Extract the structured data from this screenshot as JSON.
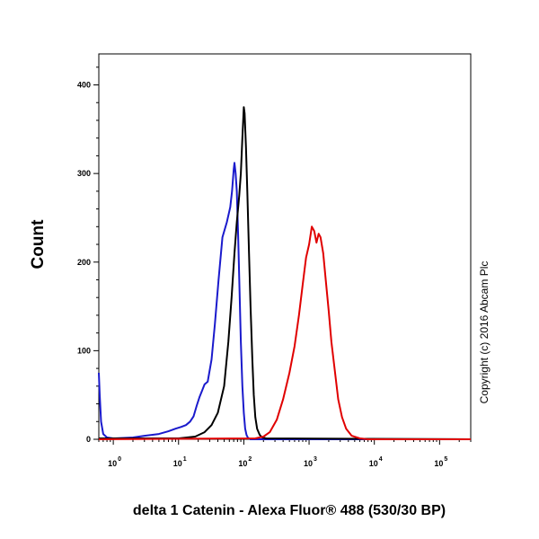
{
  "chart_data": {
    "type": "line",
    "title": "",
    "xlabel": "delta 1 Catenin - Alexa Fluor® 488 (530/30 BP)",
    "ylabel": "Count",
    "x_scale": "log",
    "xlim": [
      0.6,
      300000
    ],
    "ylim": [
      0,
      435
    ],
    "y_ticks": [
      0,
      100,
      200,
      300,
      400
    ],
    "x_ticks": [
      {
        "value": 1,
        "base": "10",
        "exp": "0"
      },
      {
        "value": 10,
        "base": "10",
        "exp": "1"
      },
      {
        "value": 100,
        "base": "10",
        "exp": "2"
      },
      {
        "value": 1000,
        "base": "10",
        "exp": "3"
      },
      {
        "value": 10000,
        "base": "10",
        "exp": "4"
      },
      {
        "value": 100000,
        "base": "10",
        "exp": "5"
      }
    ],
    "grid": false,
    "legend": "none",
    "annotation": "Copyright (c) 2016 Abcam Plc",
    "series": [
      {
        "color": "#1a1acc",
        "points": [
          [
            0.6,
            75
          ],
          [
            0.62,
            50
          ],
          [
            0.65,
            20
          ],
          [
            0.7,
            6
          ],
          [
            0.8,
            2
          ],
          [
            1,
            1
          ],
          [
            2,
            2
          ],
          [
            3,
            4
          ],
          [
            5,
            6
          ],
          [
            7,
            9
          ],
          [
            9,
            12
          ],
          [
            11,
            14
          ],
          [
            13,
            16
          ],
          [
            15,
            20
          ],
          [
            17,
            26
          ],
          [
            19,
            38
          ],
          [
            21,
            48
          ],
          [
            23,
            55
          ],
          [
            25,
            62
          ],
          [
            28,
            65
          ],
          [
            32,
            90
          ],
          [
            36,
            130
          ],
          [
            41,
            180
          ],
          [
            47,
            228
          ],
          [
            55,
            245
          ],
          [
            62,
            262
          ],
          [
            66,
            280
          ],
          [
            70,
            305
          ],
          [
            72,
            312
          ],
          [
            75,
            300
          ],
          [
            78,
            280
          ],
          [
            82,
            230
          ],
          [
            86,
            170
          ],
          [
            90,
            110
          ],
          [
            95,
            60
          ],
          [
            100,
            30
          ],
          [
            105,
            12
          ],
          [
            110,
            5
          ],
          [
            115,
            2
          ],
          [
            125,
            0
          ],
          [
            300000,
            0
          ]
        ]
      },
      {
        "color": "#000000",
        "points": [
          [
            0.6,
            1
          ],
          [
            10,
            1
          ],
          [
            18,
            3
          ],
          [
            25,
            8
          ],
          [
            32,
            16
          ],
          [
            40,
            30
          ],
          [
            50,
            60
          ],
          [
            58,
            110
          ],
          [
            65,
            160
          ],
          [
            72,
            210
          ],
          [
            78,
            245
          ],
          [
            85,
            275
          ],
          [
            90,
            300
          ],
          [
            95,
            340
          ],
          [
            100,
            375
          ],
          [
            103,
            368
          ],
          [
            108,
            330
          ],
          [
            113,
            280
          ],
          [
            120,
            210
          ],
          [
            127,
            150
          ],
          [
            135,
            90
          ],
          [
            142,
            50
          ],
          [
            150,
            25
          ],
          [
            160,
            12
          ],
          [
            175,
            5
          ],
          [
            190,
            2
          ],
          [
            220,
            1
          ],
          [
            300000,
            0
          ]
        ]
      },
      {
        "color": "#e00000",
        "points": [
          [
            0.6,
            0
          ],
          [
            150,
            1
          ],
          [
            200,
            3
          ],
          [
            250,
            8
          ],
          [
            320,
            22
          ],
          [
            400,
            45
          ],
          [
            500,
            75
          ],
          [
            600,
            105
          ],
          [
            700,
            140
          ],
          [
            800,
            175
          ],
          [
            900,
            205
          ],
          [
            1000,
            220
          ],
          [
            1100,
            240
          ],
          [
            1200,
            235
          ],
          [
            1300,
            222
          ],
          [
            1400,
            232
          ],
          [
            1500,
            228
          ],
          [
            1650,
            210
          ],
          [
            1800,
            180
          ],
          [
            2000,
            145
          ],
          [
            2200,
            110
          ],
          [
            2500,
            75
          ],
          [
            2800,
            45
          ],
          [
            3200,
            25
          ],
          [
            3700,
            12
          ],
          [
            4500,
            4
          ],
          [
            6000,
            1
          ],
          [
            8000,
            0
          ],
          [
            300000,
            0
          ]
        ]
      }
    ]
  }
}
